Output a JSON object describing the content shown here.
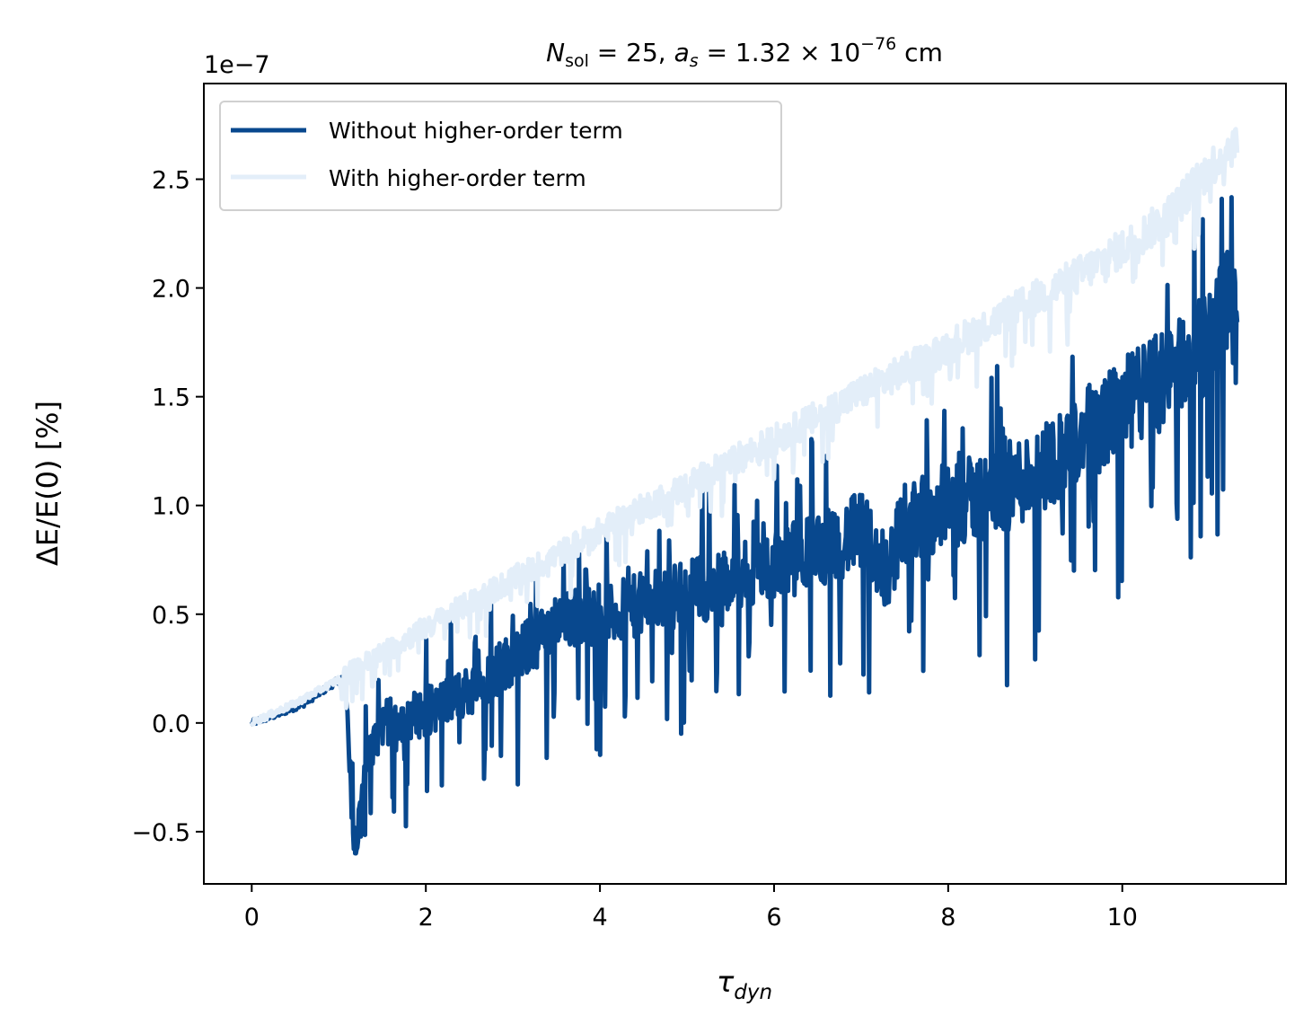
{
  "chart_data": {
    "type": "line",
    "title_parts": {
      "n_symbol": "N",
      "n_sub": "sol",
      "n_rest": " = 25, ",
      "a_symbol": "a",
      "a_sub": "s",
      "a_rest": " = 1.32 × 10",
      "a_exp": "−76",
      "a_unit": " cm"
    },
    "xlabel": {
      "symbol": "τ",
      "sub": "dyn"
    },
    "ylabel": "ΔE/E(0) [%]",
    "y_offset_text": "1e−7",
    "xlim": [
      -0.55,
      11.88
    ],
    "ylim": [
      -0.74,
      2.94
    ],
    "x_ticks": [
      0,
      2,
      4,
      6,
      8,
      10
    ],
    "x_tick_labels": [
      "0",
      "2",
      "4",
      "6",
      "8",
      "10"
    ],
    "y_ticks": [
      -0.5,
      0.0,
      0.5,
      1.0,
      1.5,
      2.0,
      2.5
    ],
    "y_tick_labels": [
      "−0.5",
      "0.0",
      "0.5",
      "1.0",
      "1.5",
      "2.0",
      "2.5"
    ],
    "grid": false,
    "legend_position": "top-left",
    "series": [
      {
        "name": "Without higher-order term",
        "color": "#08488e",
        "x": [
          0.0,
          0.3,
          0.6,
          0.9,
          1.05,
          1.1,
          1.15,
          1.2,
          1.3,
          1.5,
          2.0,
          2.5,
          3.0,
          3.5,
          3.8,
          4.0,
          4.5,
          5.0,
          5.5,
          6.0,
          6.5,
          7.0,
          7.3,
          7.5,
          8.0,
          8.5,
          9.0,
          9.5,
          10.0,
          10.5,
          11.0,
          11.2,
          11.32
        ],
        "y": [
          0.0,
          0.04,
          0.09,
          0.17,
          0.21,
          0.05,
          -0.45,
          -0.57,
          -0.2,
          0.0,
          0.05,
          0.15,
          0.3,
          0.45,
          0.5,
          0.48,
          0.55,
          0.6,
          0.65,
          0.72,
          0.8,
          0.88,
          0.7,
          0.92,
          1.0,
          1.05,
          1.15,
          1.3,
          1.45,
          1.6,
          1.75,
          1.95,
          1.85
        ]
      },
      {
        "name": "With higher-order term",
        "color": "#e3eef9",
        "x": [
          0.0,
          0.5,
          1.0,
          1.5,
          2.0,
          2.5,
          3.0,
          3.5,
          4.0,
          4.5,
          5.0,
          5.5,
          6.0,
          6.5,
          7.0,
          7.5,
          8.0,
          8.5,
          9.0,
          9.5,
          10.0,
          10.5,
          11.0,
          11.32
        ],
        "y": [
          0.0,
          0.09,
          0.2,
          0.32,
          0.44,
          0.55,
          0.66,
          0.77,
          0.88,
          0.99,
          1.09,
          1.2,
          1.3,
          1.41,
          1.52,
          1.62,
          1.73,
          1.84,
          1.95,
          2.06,
          2.18,
          2.32,
          2.55,
          2.68
        ]
      }
    ]
  }
}
